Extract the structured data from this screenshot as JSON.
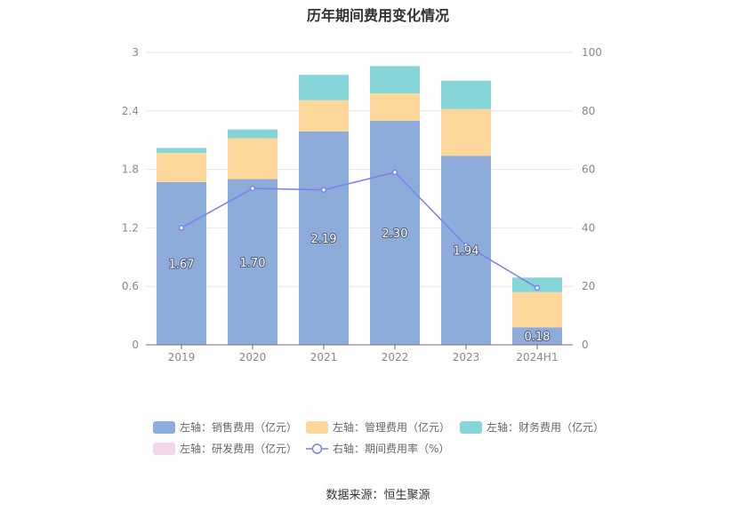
{
  "chart_data": {
    "type": "bar",
    "stacked": true,
    "title": "历年期间费用变化情况",
    "categories": [
      "2019",
      "2020",
      "2021",
      "2022",
      "2023",
      "2024H1"
    ],
    "left_axis": {
      "ticks": [
        "0",
        "0.6",
        "1.2",
        "1.8",
        "2.4",
        "3"
      ],
      "ylim": [
        0,
        3
      ]
    },
    "right_axis": {
      "ticks": [
        "0",
        "20",
        "40",
        "60",
        "80",
        "100"
      ],
      "ylim": [
        0,
        100
      ]
    },
    "series": [
      {
        "name": "左轴：销售费用（亿元）",
        "axis": "left",
        "color": "#8eacda",
        "values": [
          1.67,
          1.7,
          2.19,
          2.3,
          1.94,
          0.18
        ],
        "labels": [
          "1.67",
          "1.70",
          "2.19",
          "2.30",
          "1.94",
          "0.18"
        ]
      },
      {
        "name": "左轴：管理费用（亿元）",
        "axis": "left",
        "color": "#fdd89a",
        "values": [
          0.3,
          0.42,
          0.32,
          0.28,
          0.48,
          0.36
        ]
      },
      {
        "name": "左轴：财务费用（亿元）",
        "axis": "left",
        "color": "#85d5d9",
        "values": [
          0.05,
          0.09,
          0.26,
          0.28,
          0.29,
          0.15
        ]
      },
      {
        "name": "左轴：研发费用（亿元）",
        "axis": "left",
        "color": "#f2d7ec",
        "values": [
          0,
          0,
          0,
          0,
          0,
          0
        ]
      },
      {
        "name": "右轴：期间费用率（%）",
        "axis": "right",
        "type": "line",
        "color": "#7b7ff0",
        "values": [
          40.0,
          53.5,
          53.0,
          59.0,
          34.0,
          19.5
        ]
      }
    ],
    "legend_position": "bottom",
    "grid": true
  },
  "source": "数据来源：恒生聚源"
}
